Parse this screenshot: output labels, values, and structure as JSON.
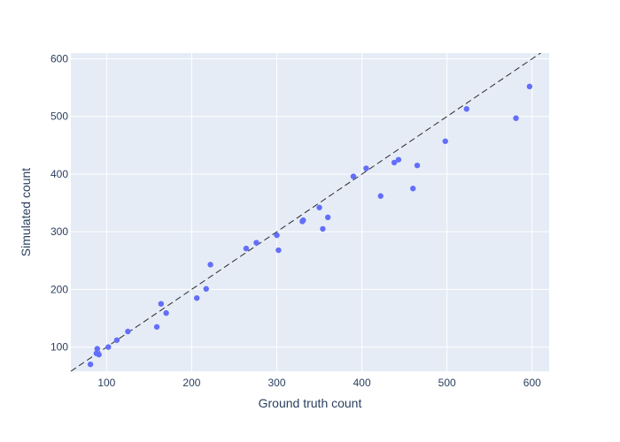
{
  "chart_data": {
    "type": "scatter",
    "xlabel": "Ground truth count",
    "ylabel": "Simulated count",
    "xlim": [
      58,
      620
    ],
    "ylim": [
      58,
      610
    ],
    "x_ticks": [
      100,
      200,
      300,
      400,
      500,
      600
    ],
    "y_ticks": [
      100,
      200,
      300,
      400,
      500,
      600
    ],
    "x_tick_labels": [
      "100",
      "200",
      "300",
      "400",
      "500",
      "600"
    ],
    "y_tick_labels": [
      "100",
      "200",
      "300",
      "400",
      "500",
      "600"
    ],
    "grid": true,
    "reference_line": {
      "type": "y=x",
      "style": "dashed",
      "color": "#2a2a2a"
    },
    "colors": {
      "plot_background": "#e5ecf6",
      "marker": "#636efa",
      "grid": "#ffffff",
      "text": "#2a3f5f"
    },
    "points": [
      {
        "x": 81,
        "y": 70
      },
      {
        "x": 88,
        "y": 89
      },
      {
        "x": 89,
        "y": 97
      },
      {
        "x": 91,
        "y": 87
      },
      {
        "x": 102,
        "y": 100
      },
      {
        "x": 112,
        "y": 112
      },
      {
        "x": 125,
        "y": 127
      },
      {
        "x": 159,
        "y": 135
      },
      {
        "x": 164,
        "y": 175
      },
      {
        "x": 170,
        "y": 159
      },
      {
        "x": 206,
        "y": 185
      },
      {
        "x": 217,
        "y": 201
      },
      {
        "x": 222,
        "y": 243
      },
      {
        "x": 264,
        "y": 271
      },
      {
        "x": 276,
        "y": 281
      },
      {
        "x": 300,
        "y": 294
      },
      {
        "x": 302,
        "y": 268
      },
      {
        "x": 330,
        "y": 318
      },
      {
        "x": 331,
        "y": 320
      },
      {
        "x": 350,
        "y": 342
      },
      {
        "x": 354,
        "y": 305
      },
      {
        "x": 360,
        "y": 325
      },
      {
        "x": 390,
        "y": 396
      },
      {
        "x": 405,
        "y": 410
      },
      {
        "x": 422,
        "y": 362
      },
      {
        "x": 438,
        "y": 420
      },
      {
        "x": 443,
        "y": 425
      },
      {
        "x": 460,
        "y": 375
      },
      {
        "x": 465,
        "y": 415
      },
      {
        "x": 498,
        "y": 457
      },
      {
        "x": 523,
        "y": 513
      },
      {
        "x": 581,
        "y": 497
      },
      {
        "x": 597,
        "y": 552
      }
    ]
  }
}
